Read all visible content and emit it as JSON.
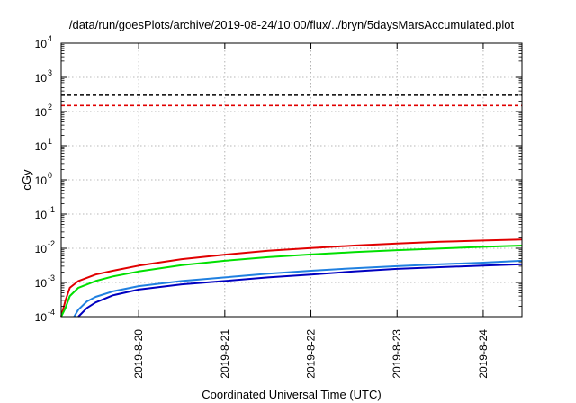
{
  "chart_data": {
    "type": "line",
    "title": "/data/run/goesPlots/archive/2019-08-24/10:00/flux/../bryn/5daysMarsAccumulated.plot",
    "xlabel": "Coordinated Universal Time (UTC)",
    "ylabel": "cGy",
    "y_scale": "log",
    "ylim": [
      0.0001,
      10000
    ],
    "xlim": [
      19.1,
      24.45
    ],
    "y_ticks": [
      {
        "base": "10",
        "exp": "-4",
        "value": 0.0001
      },
      {
        "base": "10",
        "exp": "-3",
        "value": 0.001
      },
      {
        "base": "10",
        "exp": "-2",
        "value": 0.01
      },
      {
        "base": "10",
        "exp": "-1",
        "value": 0.1
      },
      {
        "base": "10",
        "exp": "0",
        "value": 1
      },
      {
        "base": "10",
        "exp": "1",
        "value": 10
      },
      {
        "base": "10",
        "exp": "2",
        "value": 100
      },
      {
        "base": "10",
        "exp": "3",
        "value": 1000
      },
      {
        "base": "10",
        "exp": "4",
        "value": 10000
      }
    ],
    "x_ticks": [
      {
        "label": "2019-8-20",
        "value": 20
      },
      {
        "label": "2019-8-21",
        "value": 21
      },
      {
        "label": "2019-8-22",
        "value": 22
      },
      {
        "label": "2019-8-23",
        "value": 23
      },
      {
        "label": "2019-8-24",
        "value": 24
      }
    ],
    "grid": true,
    "reference_lines": [
      {
        "value": 300,
        "color": "#000000",
        "style": "dashed"
      },
      {
        "value": 150,
        "color": "#e00000",
        "style": "dashed"
      }
    ],
    "series": [
      {
        "color": "#e00000",
        "x": [
          19.1,
          19.15,
          19.2,
          19.3,
          19.5,
          19.7,
          20.0,
          20.5,
          21.0,
          21.5,
          22.0,
          22.5,
          23.0,
          23.5,
          24.0,
          24.45
        ],
        "y": [
          0.0001,
          0.0003,
          0.0007,
          0.0011,
          0.0017,
          0.0022,
          0.0031,
          0.0048,
          0.0065,
          0.0085,
          0.0102,
          0.012,
          0.0138,
          0.0155,
          0.0168,
          0.018
        ]
      },
      {
        "color": "#00e000",
        "x": [
          19.1,
          19.15,
          19.2,
          19.3,
          19.5,
          19.7,
          20.0,
          20.5,
          21.0,
          21.5,
          22.0,
          22.5,
          23.0,
          23.5,
          24.0,
          24.45
        ],
        "y": [
          0.0001,
          0.00018,
          0.0004,
          0.0007,
          0.0011,
          0.0015,
          0.0021,
          0.0032,
          0.0043,
          0.0055,
          0.0066,
          0.0077,
          0.0088,
          0.0099,
          0.011,
          0.012
        ]
      },
      {
        "color": "#2080e0",
        "x": [
          19.25,
          19.3,
          19.4,
          19.5,
          19.7,
          20.0,
          20.5,
          21.0,
          21.5,
          22.0,
          22.5,
          23.0,
          23.5,
          24.0,
          24.45
        ],
        "y": [
          0.0001,
          0.00016,
          0.00028,
          0.00038,
          0.00055,
          0.00078,
          0.0011,
          0.0014,
          0.0018,
          0.0022,
          0.0026,
          0.003,
          0.0034,
          0.0038,
          0.0043
        ]
      },
      {
        "color": "#0000c0",
        "x": [
          19.3,
          19.4,
          19.5,
          19.7,
          20.0,
          20.5,
          21.0,
          21.5,
          22.0,
          22.5,
          23.0,
          23.5,
          24.0,
          24.45
        ],
        "y": [
          0.0001,
          0.00018,
          0.00026,
          0.00042,
          0.00062,
          0.00088,
          0.0011,
          0.0014,
          0.0017,
          0.0021,
          0.0025,
          0.0028,
          0.0031,
          0.0034
        ]
      }
    ]
  }
}
